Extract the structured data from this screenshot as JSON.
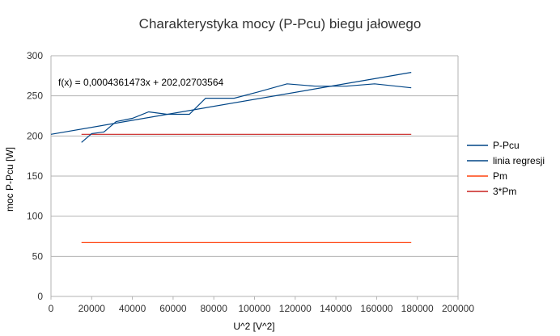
{
  "chart_data": {
    "type": "line",
    "title": "Charakterystyka mocy (P-Pcu) biegu jałowego",
    "xlabel": "U^2 [V^2]",
    "ylabel": "moc P-Pcu [W]",
    "xlim": [
      0,
      200000
    ],
    "ylim": [
      0,
      300
    ],
    "x_ticks": [
      0,
      20000,
      40000,
      60000,
      80000,
      100000,
      120000,
      140000,
      160000,
      180000,
      200000
    ],
    "y_ticks": [
      0,
      50,
      100,
      150,
      200,
      250,
      300
    ],
    "grid": "horizontal",
    "legend_position": "right",
    "annotation": "f(x) = 0,0004361473x + 202,02703564",
    "series": [
      {
        "name": "P-Pcu",
        "color": "#004586",
        "points": [
          [
            15000,
            192
          ],
          [
            20000,
            203
          ],
          [
            26000,
            205
          ],
          [
            32000,
            218
          ],
          [
            40000,
            222
          ],
          [
            48000,
            230
          ],
          [
            57000,
            227
          ],
          [
            68000,
            227
          ],
          [
            76000,
            247
          ],
          [
            90000,
            247
          ],
          [
            102000,
            255
          ],
          [
            116000,
            265
          ],
          [
            130000,
            262
          ],
          [
            145000,
            262
          ],
          [
            159000,
            265
          ],
          [
            177000,
            260
          ]
        ]
      },
      {
        "name": "linia regresji",
        "color": "#004586",
        "points": [
          [
            0,
            202.03
          ],
          [
            177000,
            279.23
          ]
        ]
      },
      {
        "name": "Pm",
        "color": "#ff420e",
        "points": [
          [
            15000,
            67
          ],
          [
            177000,
            67
          ]
        ]
      },
      {
        "name": "3*Pm",
        "color": "#c9211e",
        "points": [
          [
            15000,
            202
          ],
          [
            177000,
            202
          ]
        ]
      }
    ]
  }
}
